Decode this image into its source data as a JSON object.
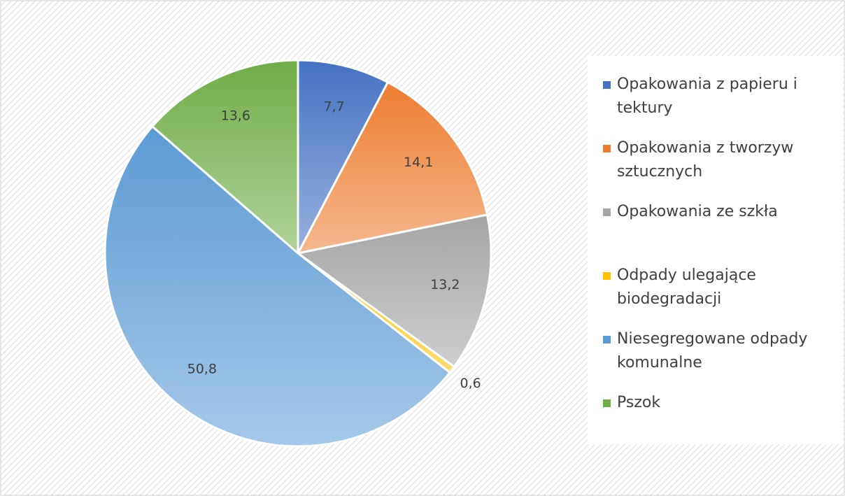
{
  "chart_data": {
    "type": "pie",
    "categories": [
      "Opakowania z papieru i tektury",
      "Opakowania z tworzyw sztucznych",
      "Opakowania ze szkła",
      "Odpady ulegające biodegradacji",
      "Niesegregowane odpady komunalne",
      "Pszok"
    ],
    "values": [
      7.7,
      14.1,
      13.2,
      0.6,
      50.8,
      13.6
    ],
    "value_labels": [
      "7,7",
      "14,1",
      "13,2",
      "0,6",
      "50,8",
      "13,6"
    ],
    "colors": [
      "#4472c4",
      "#ed7d31",
      "#a5a5a5",
      "#ffc000",
      "#5b9bd5",
      "#70ad47"
    ],
    "legend": "right"
  }
}
